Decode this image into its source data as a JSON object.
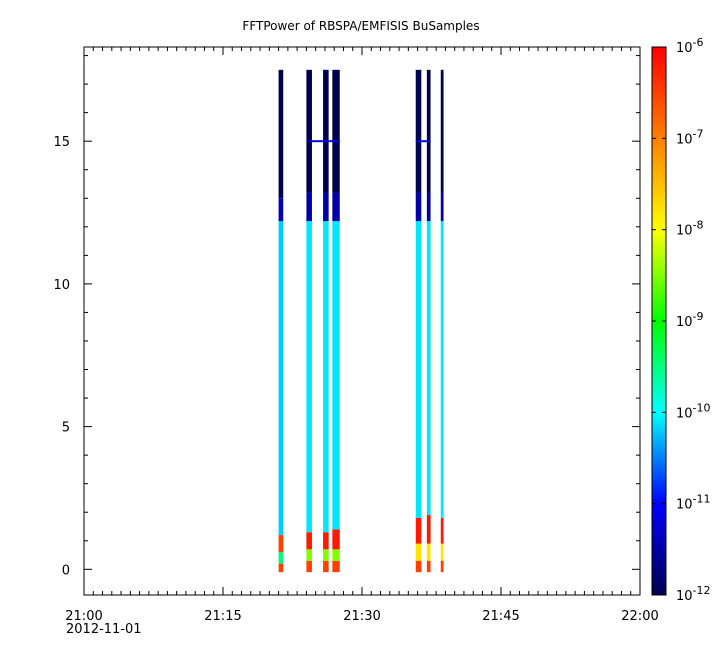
{
  "chart_data": {
    "type": "heatmap",
    "title": "FFTPower of RBSPA/EMFISIS  BuSamples",
    "xlabel": "",
    "ylabel": "",
    "x_axis": {
      "range": [
        "21:00",
        "22:00"
      ],
      "ticks": [
        "21:00",
        "21:15",
        "21:30",
        "21:45",
        "22:00"
      ],
      "date_label": "2012-11-01"
    },
    "y_axis": {
      "range": [
        -0.9,
        18.3
      ],
      "ticks": [
        0,
        5,
        10,
        15
      ]
    },
    "colorbar": {
      "scale": "log",
      "range": [
        1e-12,
        1e-06
      ],
      "ticks": [
        {
          "base": "10",
          "exp": "-12"
        },
        {
          "base": "10",
          "exp": "-11"
        },
        {
          "base": "10",
          "exp": "-10"
        },
        {
          "base": "10",
          "exp": "-9"
        },
        {
          "base": "10",
          "exp": "-8"
        },
        {
          "base": "10",
          "exp": "-7"
        },
        {
          "base": "10",
          "exp": "-6"
        }
      ]
    },
    "series": [
      {
        "start_min": 21.0,
        "end_min": 21.5,
        "ymax": 17.5,
        "levels": [
          {
            "y0": -0.1,
            "y1": 0.2,
            "logp": -6.5
          },
          {
            "y0": 0.2,
            "y1": 0.6,
            "logp": -9.5
          },
          {
            "y0": 0.6,
            "y1": 1.2,
            "logp": -6.5
          },
          {
            "y0": 1.2,
            "y1": 12.2,
            "logp": -10.2
          },
          {
            "y0": 12.2,
            "y1": 13.0,
            "logp": -11.4
          },
          {
            "y0": 13.0,
            "y1": 17.5,
            "logp": -12.0
          }
        ]
      },
      {
        "start_min": 24.0,
        "end_min": 24.6,
        "ymax": 17.5,
        "levels": [
          {
            "y0": -0.1,
            "y1": 0.3,
            "logp": -6.5
          },
          {
            "y0": 0.3,
            "y1": 0.7,
            "logp": -8.5
          },
          {
            "y0": 0.7,
            "y1": 1.3,
            "logp": -6.2
          },
          {
            "y0": 1.3,
            "y1": 12.2,
            "logp": -10.1
          },
          {
            "y0": 12.2,
            "y1": 13.2,
            "logp": -11.5
          },
          {
            "y0": 13.2,
            "y1": 17.5,
            "logp": -12.0
          }
        ]
      },
      {
        "start_min": 25.8,
        "end_min": 26.4,
        "ymax": 17.5,
        "levels": [
          {
            "y0": -0.1,
            "y1": 0.3,
            "logp": -6.5
          },
          {
            "y0": 0.3,
            "y1": 0.7,
            "logp": -8.5
          },
          {
            "y0": 0.7,
            "y1": 1.3,
            "logp": -6.2
          },
          {
            "y0": 1.3,
            "y1": 12.2,
            "logp": -10.1
          },
          {
            "y0": 12.2,
            "y1": 13.2,
            "logp": -11.5
          },
          {
            "y0": 13.2,
            "y1": 17.5,
            "logp": -12.0
          }
        ]
      },
      {
        "start_min": 26.8,
        "end_min": 27.6,
        "ymax": 17.5,
        "levels": [
          {
            "y0": -0.1,
            "y1": 0.3,
            "logp": -6.5
          },
          {
            "y0": 0.3,
            "y1": 0.7,
            "logp": -8.5
          },
          {
            "y0": 0.7,
            "y1": 1.4,
            "logp": -6.2
          },
          {
            "y0": 1.4,
            "y1": 12.2,
            "logp": -10.1
          },
          {
            "y0": 12.2,
            "y1": 13.2,
            "logp": -11.5
          },
          {
            "y0": 13.2,
            "y1": 17.5,
            "logp": -12.0
          }
        ]
      },
      {
        "start_min": 35.8,
        "end_min": 36.4,
        "ymax": 17.5,
        "levels": [
          {
            "y0": -0.1,
            "y1": 0.3,
            "logp": -6.5
          },
          {
            "y0": 0.3,
            "y1": 0.9,
            "logp": -7.8
          },
          {
            "y0": 0.9,
            "y1": 1.8,
            "logp": -6.2
          },
          {
            "y0": 1.8,
            "y1": 12.2,
            "logp": -10.1
          },
          {
            "y0": 12.2,
            "y1": 13.2,
            "logp": -11.5
          },
          {
            "y0": 13.2,
            "y1": 17.5,
            "logp": -12.0
          }
        ]
      },
      {
        "start_min": 37.0,
        "end_min": 37.4,
        "ymax": 17.5,
        "levels": [
          {
            "y0": -0.1,
            "y1": 0.3,
            "logp": -6.5
          },
          {
            "y0": 0.3,
            "y1": 0.9,
            "logp": -7.8
          },
          {
            "y0": 0.9,
            "y1": 1.9,
            "logp": -6.2
          },
          {
            "y0": 1.9,
            "y1": 12.2,
            "logp": -10.1
          },
          {
            "y0": 12.2,
            "y1": 13.2,
            "logp": -11.5
          },
          {
            "y0": 13.2,
            "y1": 17.5,
            "logp": -12.0
          }
        ]
      },
      {
        "start_min": 38.5,
        "end_min": 38.8,
        "ymax": 17.5,
        "levels": [
          {
            "y0": -0.1,
            "y1": 0.3,
            "logp": -6.5
          },
          {
            "y0": 0.3,
            "y1": 0.9,
            "logp": -7.8
          },
          {
            "y0": 0.9,
            "y1": 1.8,
            "logp": -6.2
          },
          {
            "y0": 1.8,
            "y1": 12.2,
            "logp": -10.1
          },
          {
            "y0": 12.2,
            "y1": 13.2,
            "logp": -11.5
          },
          {
            "y0": 13.2,
            "y1": 17.5,
            "logp": -12.0
          }
        ]
      }
    ],
    "line_features": [
      {
        "y": 15.0,
        "logp": -11.2,
        "x_ranges": [
          [
            24.0,
            27.6
          ],
          [
            35.8,
            37.4
          ]
        ]
      }
    ],
    "colormap": [
      "#000050",
      "#0000ff",
      "#00ffff",
      "#00ff00",
      "#ffff00",
      "#ff7f00",
      "#ff0000"
    ],
    "grid": false,
    "legend": "colorbar-right"
  }
}
